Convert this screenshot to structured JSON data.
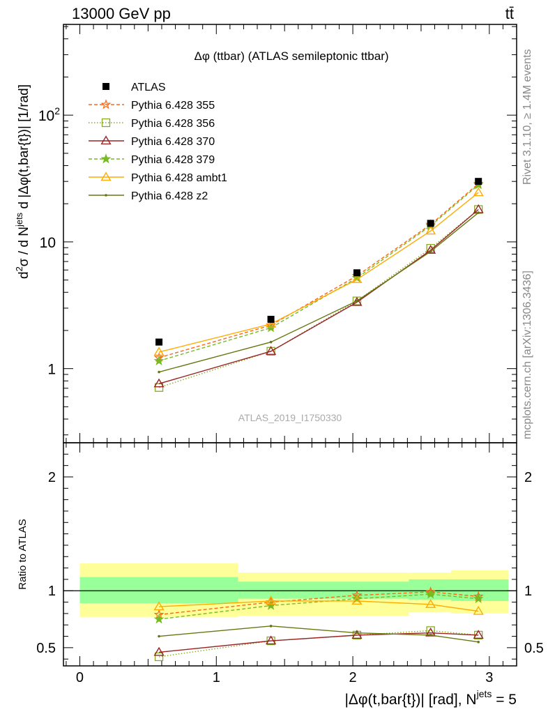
{
  "header": {
    "left": "13000 GeV pp",
    "right": "tt̄"
  },
  "side_text": {
    "rivet": "Rivet 3.1.10, ≥ 1.4M events",
    "mcplots": "mcplots.cern.ch [arXiv:1306.3436]"
  },
  "chart_data": {
    "type": "line",
    "title": "Δφ (ttbar) (ATLAS semileptonic ttbar)",
    "watermark": "ATLAS_2019_I1750330",
    "xlabel": "|Δφ(t,bar{t})| [rad], N",
    "xlabel_sup": "jets",
    "xlabel_tail": " = 5",
    "ylabel": {
      "p1": "d",
      "p1_sup": "2",
      "p2": "σ  /  d N",
      "p2_sup": "jets",
      "p3": " d |Δφ(t,bar{t})| [1/rad]"
    },
    "ratio_ylabel": "Ratio to ATLAS",
    "xlim": [
      -0.12,
      3.2
    ],
    "ylim_main": [
      0.26,
      520
    ],
    "y_scale_main": "log",
    "ylim_ratio": [
      0.34,
      2.3
    ],
    "x_ticks": [
      {
        "value": 0,
        "label": "0"
      },
      {
        "value": 1,
        "label": "1"
      },
      {
        "value": 2,
        "label": "2"
      },
      {
        "value": 3,
        "label": "3"
      }
    ],
    "y_ticks_main": [
      {
        "value": 1,
        "label": "1"
      },
      {
        "value": 10,
        "label": "10"
      },
      {
        "value": 100,
        "label": "10",
        "sup": "2"
      }
    ],
    "y_ticks_ratio": [
      {
        "value": 0.5,
        "label": "0.5"
      },
      {
        "value": 1,
        "label": "1"
      },
      {
        "value": 2,
        "label": "2"
      }
    ],
    "x": [
      0.58,
      1.4,
      2.03,
      2.57,
      2.92
    ],
    "data": {
      "name": "ATLAS",
      "values": [
        1.62,
        2.45,
        5.7,
        14.0,
        30.0
      ]
    },
    "bands": {
      "edges": [
        0.0,
        1.16,
        1.65,
        2.41,
        2.72,
        3.14
      ],
      "stat_lo": [
        0.89,
        0.93,
        0.93,
        0.92,
        0.91
      ],
      "stat_hi": [
        1.12,
        1.08,
        1.08,
        1.1,
        1.1
      ],
      "syst_lo": [
        0.77,
        0.78,
        0.78,
        0.81,
        0.8
      ],
      "syst_hi": [
        1.24,
        1.16,
        1.16,
        1.16,
        1.18
      ],
      "stat_color": "#99ff99",
      "syst_color": "#ffff99"
    },
    "series": [
      {
        "name": "Pythia 6.428 355",
        "color": "#ff6611",
        "dash": "5,3",
        "marker": "star-open",
        "values": [
          1.22,
          2.2,
          5.4,
          13.7,
          28.8
        ],
        "ratio": [
          0.79,
          0.9,
          0.96,
          0.99,
          0.95
        ]
      },
      {
        "name": "Pythia 6.428 356",
        "color": "#88aa22",
        "dash": "1.5,2.5",
        "marker": "square-open",
        "values": [
          0.71,
          1.37,
          3.42,
          8.9,
          18.0
        ],
        "ratio": [
          0.42,
          0.56,
          0.61,
          0.65,
          0.61
        ]
      },
      {
        "name": "Pythia 6.428 370",
        "color": "#992222",
        "dash": "",
        "marker": "triangle-open",
        "values": [
          0.76,
          1.37,
          3.34,
          8.6,
          18.0
        ],
        "ratio": [
          0.46,
          0.56,
          0.61,
          0.63,
          0.61
        ]
      },
      {
        "name": "Pythia 6.428 379",
        "color": "#77bb22",
        "dash": "5,3",
        "marker": "star-filled",
        "values": [
          1.15,
          2.1,
          5.2,
          13.4,
          28.2
        ],
        "ratio": [
          0.75,
          0.87,
          0.93,
          0.97,
          0.93
        ]
      },
      {
        "name": "Pythia 6.428 ambt1",
        "color": "#ffaa00",
        "dash": "",
        "marker": "triangle-open",
        "values": [
          1.35,
          2.25,
          5.05,
          12.2,
          24.5
        ],
        "ratio": [
          0.86,
          0.91,
          0.91,
          0.88,
          0.82
        ]
      },
      {
        "name": "Pythia 6.428 z2",
        "color": "#667711",
        "dash": "",
        "marker": "dot",
        "values": [
          0.94,
          1.62,
          3.42,
          8.4,
          17.0
        ],
        "ratio": [
          0.6,
          0.69,
          0.63,
          0.61,
          0.55
        ]
      }
    ]
  }
}
